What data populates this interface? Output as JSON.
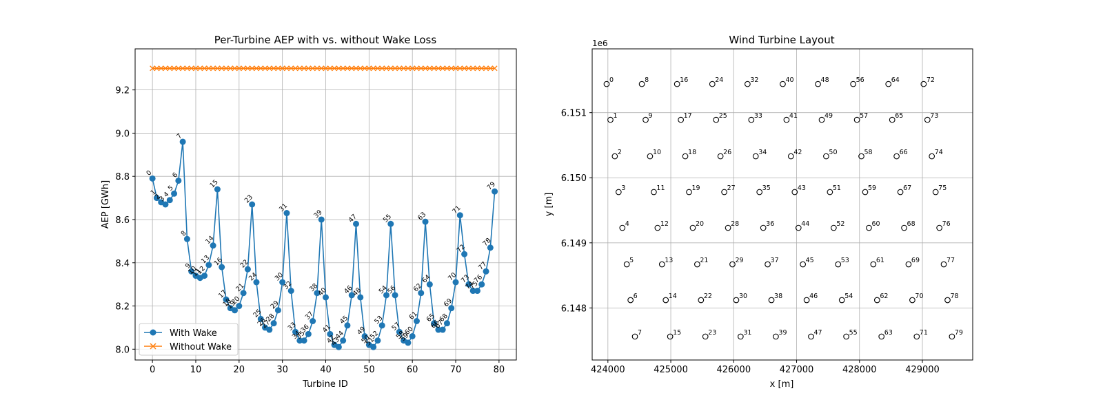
{
  "chart_data": [
    {
      "type": "line",
      "title": "Per-Turbine AEP with vs. without Wake Loss",
      "xlabel": "Turbine ID",
      "ylabel": "AEP [GWh]",
      "xlim": [
        -4,
        84
      ],
      "ylim": [
        7.95,
        9.39
      ],
      "xticks": [
        0,
        10,
        20,
        30,
        40,
        50,
        60,
        70,
        80
      ],
      "yticks": [
        8.0,
        8.2,
        8.4,
        8.6,
        8.8,
        9.0,
        9.2
      ],
      "ytick_labels": [
        "8.0",
        "8.2",
        "8.4",
        "8.6",
        "8.8",
        "9.0",
        "9.2"
      ],
      "grid": true,
      "legend_position": "lower-left",
      "series": [
        {
          "name": "With Wake",
          "color": "#1f77b4",
          "marker": "circle",
          "x": [
            0,
            1,
            2,
            3,
            4,
            5,
            6,
            7,
            8,
            9,
            10,
            11,
            12,
            13,
            14,
            15,
            16,
            17,
            18,
            19,
            20,
            21,
            22,
            23,
            24,
            25,
            26,
            27,
            28,
            29,
            30,
            31,
            32,
            33,
            34,
            35,
            36,
            37,
            38,
            39,
            40,
            41,
            42,
            43,
            44,
            45,
            46,
            47,
            48,
            49,
            50,
            51,
            52,
            53,
            54,
            55,
            56,
            57,
            58,
            59,
            60,
            61,
            62,
            63,
            64,
            65,
            66,
            67,
            68,
            69,
            70,
            71,
            72,
            73,
            74,
            75,
            76,
            77,
            78,
            79
          ],
          "values": [
            8.79,
            8.7,
            8.68,
            8.67,
            8.69,
            8.72,
            8.78,
            8.96,
            8.51,
            8.36,
            8.34,
            8.33,
            8.34,
            8.39,
            8.48,
            8.74,
            8.38,
            8.23,
            8.19,
            8.18,
            8.2,
            8.26,
            8.37,
            8.67,
            8.31,
            8.14,
            8.1,
            8.09,
            8.12,
            8.18,
            8.31,
            8.63,
            8.27,
            8.08,
            8.04,
            8.04,
            8.07,
            8.13,
            8.26,
            8.6,
            8.24,
            8.07,
            8.02,
            8.01,
            8.04,
            8.11,
            8.25,
            8.58,
            8.24,
            8.06,
            8.02,
            8.01,
            8.04,
            8.11,
            8.25,
            8.58,
            8.25,
            8.08,
            8.04,
            8.03,
            8.06,
            8.13,
            8.26,
            8.59,
            8.3,
            8.12,
            8.09,
            8.09,
            8.12,
            8.19,
            8.31,
            8.62,
            8.44,
            8.3,
            8.27,
            8.27,
            8.3,
            8.36,
            8.47,
            8.73
          ],
          "labels": [
            "0",
            "1",
            "2",
            "3",
            "4",
            "5",
            "6",
            "7",
            "8",
            "9",
            "10",
            "11",
            "12",
            "13",
            "14",
            "15",
            "16",
            "17",
            "18",
            "19",
            "20",
            "21",
            "22",
            "23",
            "24",
            "25",
            "26",
            "27",
            "28",
            "29",
            "30",
            "31",
            "32",
            "33",
            "34",
            "35",
            "36",
            "37",
            "38",
            "39",
            "40",
            "41",
            "42",
            "43",
            "44",
            "45",
            "46",
            "47",
            "48",
            "49",
            "50",
            "51",
            "52",
            "53",
            "54",
            "55",
            "56",
            "57",
            "58",
            "59",
            "60",
            "61",
            "62",
            "63",
            "64",
            "65",
            "66",
            "67",
            "68",
            "69",
            "70",
            "71",
            "72",
            "73",
            "74",
            "75",
            "76",
            "77",
            "78",
            "79"
          ]
        },
        {
          "name": "Without Wake",
          "color": "#ff7f0e",
          "marker": "x",
          "x": [
            0,
            1,
            2,
            3,
            4,
            5,
            6,
            7,
            8,
            9,
            10,
            11,
            12,
            13,
            14,
            15,
            16,
            17,
            18,
            19,
            20,
            21,
            22,
            23,
            24,
            25,
            26,
            27,
            28,
            29,
            30,
            31,
            32,
            33,
            34,
            35,
            36,
            37,
            38,
            39,
            40,
            41,
            42,
            43,
            44,
            45,
            46,
            47,
            48,
            49,
            50,
            51,
            52,
            53,
            54,
            55,
            56,
            57,
            58,
            59,
            60,
            61,
            62,
            63,
            64,
            65,
            66,
            67,
            68,
            69,
            70,
            71,
            72,
            73,
            74,
            75,
            76,
            77,
            78,
            79
          ],
          "values": [
            9.3,
            9.3,
            9.3,
            9.3,
            9.3,
            9.3,
            9.3,
            9.3,
            9.3,
            9.3,
            9.3,
            9.3,
            9.3,
            9.3,
            9.3,
            9.3,
            9.3,
            9.3,
            9.3,
            9.3,
            9.3,
            9.3,
            9.3,
            9.3,
            9.3,
            9.3,
            9.3,
            9.3,
            9.3,
            9.3,
            9.3,
            9.3,
            9.3,
            9.3,
            9.3,
            9.3,
            9.3,
            9.3,
            9.3,
            9.3,
            9.3,
            9.3,
            9.3,
            9.3,
            9.3,
            9.3,
            9.3,
            9.3,
            9.3,
            9.3,
            9.3,
            9.3,
            9.3,
            9.3,
            9.3,
            9.3,
            9.3,
            9.3,
            9.3,
            9.3,
            9.3,
            9.3,
            9.3,
            9.3,
            9.3,
            9.3,
            9.3,
            9.3,
            9.3,
            9.3,
            9.3,
            9.3,
            9.3,
            9.3,
            9.3,
            9.3,
            9.3,
            9.3,
            9.3,
            9.3
          ]
        }
      ]
    },
    {
      "type": "scatter",
      "title": "Wind Turbine Layout",
      "xlabel": "x [m]",
      "ylabel": "y [m]",
      "y_offset_label": "1e6",
      "xlim": [
        423750,
        429800
      ],
      "ylim": [
        6147200,
        6151980
      ],
      "xticks": [
        424000,
        425000,
        426000,
        427000,
        428000,
        429000
      ],
      "yticks": [
        6148000,
        6149000,
        6150000,
        6151000
      ],
      "ytick_labels": [
        "6.148",
        "6.149",
        "6.150",
        "6.151"
      ],
      "grid": true,
      "marker": "open-circle",
      "columns_x": [
        [
          423980,
          424040,
          424110,
          424170,
          424230,
          424300,
          424360,
          424430
        ],
        [
          424540,
          424600,
          424670,
          424730,
          424790,
          424860,
          424920,
          424990
        ],
        [
          425100,
          425160,
          425230,
          425290,
          425350,
          425420,
          425480,
          425550
        ],
        [
          425660,
          425720,
          425790,
          425850,
          425910,
          425980,
          426040,
          426110
        ],
        [
          426220,
          426280,
          426350,
          426410,
          426470,
          426540,
          426600,
          426670
        ],
        [
          426780,
          426840,
          426910,
          426970,
          427030,
          427100,
          427160,
          427230
        ],
        [
          427340,
          427400,
          427470,
          427530,
          427590,
          427660,
          427720,
          427790
        ],
        [
          427900,
          427960,
          428030,
          428090,
          428150,
          428220,
          428280,
          428350
        ],
        [
          428460,
          428520,
          428590,
          428650,
          428710,
          428780,
          428840,
          428910
        ],
        [
          429020,
          429080,
          429150,
          429210,
          429270,
          429340,
          429400,
          429470
        ]
      ],
      "rows_y": [
        6151440,
        6150890,
        6150330,
        6149780,
        6149230,
        6148670,
        6148120,
        6147560
      ]
    }
  ]
}
